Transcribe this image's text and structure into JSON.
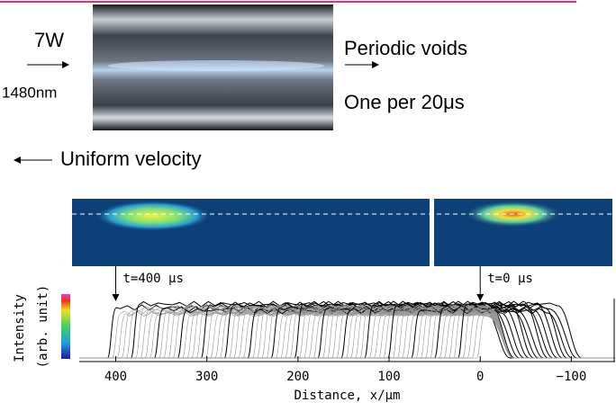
{
  "labels": {
    "power": "7W",
    "wavelength": "1480nm",
    "voids": "Periodic voids",
    "rate": "One per 20μs",
    "velocity": "Uniform velocity"
  },
  "chart_data": {
    "type": "waterfall",
    "xlabel": "Distance, x/μm",
    "ylabel": "Intensity",
    "colorbar_label": "(arb. unit)",
    "annotations": [
      {
        "text": "t=400 μs",
        "x": 400
      },
      {
        "text": "t=0 μs",
        "x": 0
      }
    ],
    "xlim": [
      440,
      -148
    ],
    "xticks": [
      400,
      300,
      200,
      100,
      0,
      {
        "value": -100,
        "label": "−100"
      }
    ]
  }
}
